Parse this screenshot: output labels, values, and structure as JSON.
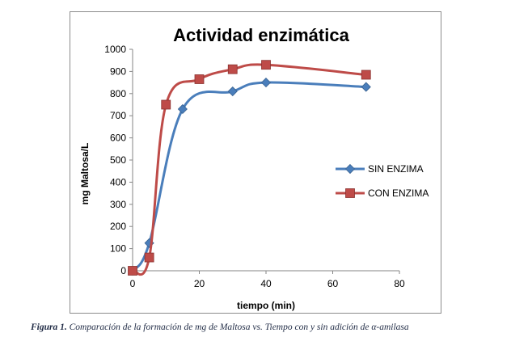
{
  "chart_data": {
    "type": "line",
    "title": "Actividad enzimática",
    "xlabel": "tiempo (min)",
    "ylabel": "mg Maltosa/L",
    "xlim": [
      0,
      80
    ],
    "ylim": [
      0,
      1000
    ],
    "xticks": [
      0,
      20,
      40,
      60,
      80
    ],
    "yticks": [
      0,
      100,
      200,
      300,
      400,
      500,
      600,
      700,
      800,
      900,
      1000
    ],
    "grid": false,
    "legend": "right",
    "series": [
      {
        "name": "SIN ENZIMA",
        "color": "#4a7ebb",
        "marker": "diamond",
        "x": [
          0,
          5,
          15,
          30,
          40,
          70
        ],
        "y": [
          0,
          125,
          730,
          810,
          850,
          830
        ]
      },
      {
        "name": "CON ENZIMA",
        "color": "#be4b48",
        "marker": "square",
        "x": [
          0,
          5,
          10,
          20,
          30,
          40,
          70
        ],
        "y": [
          0,
          60,
          750,
          865,
          910,
          930,
          885
        ]
      }
    ]
  },
  "caption": {
    "lead": "Figura 1.",
    "text": " Comparación de la formación de mg de Maltosa vs. Tiempo con y sin adición de α-amilasa"
  }
}
